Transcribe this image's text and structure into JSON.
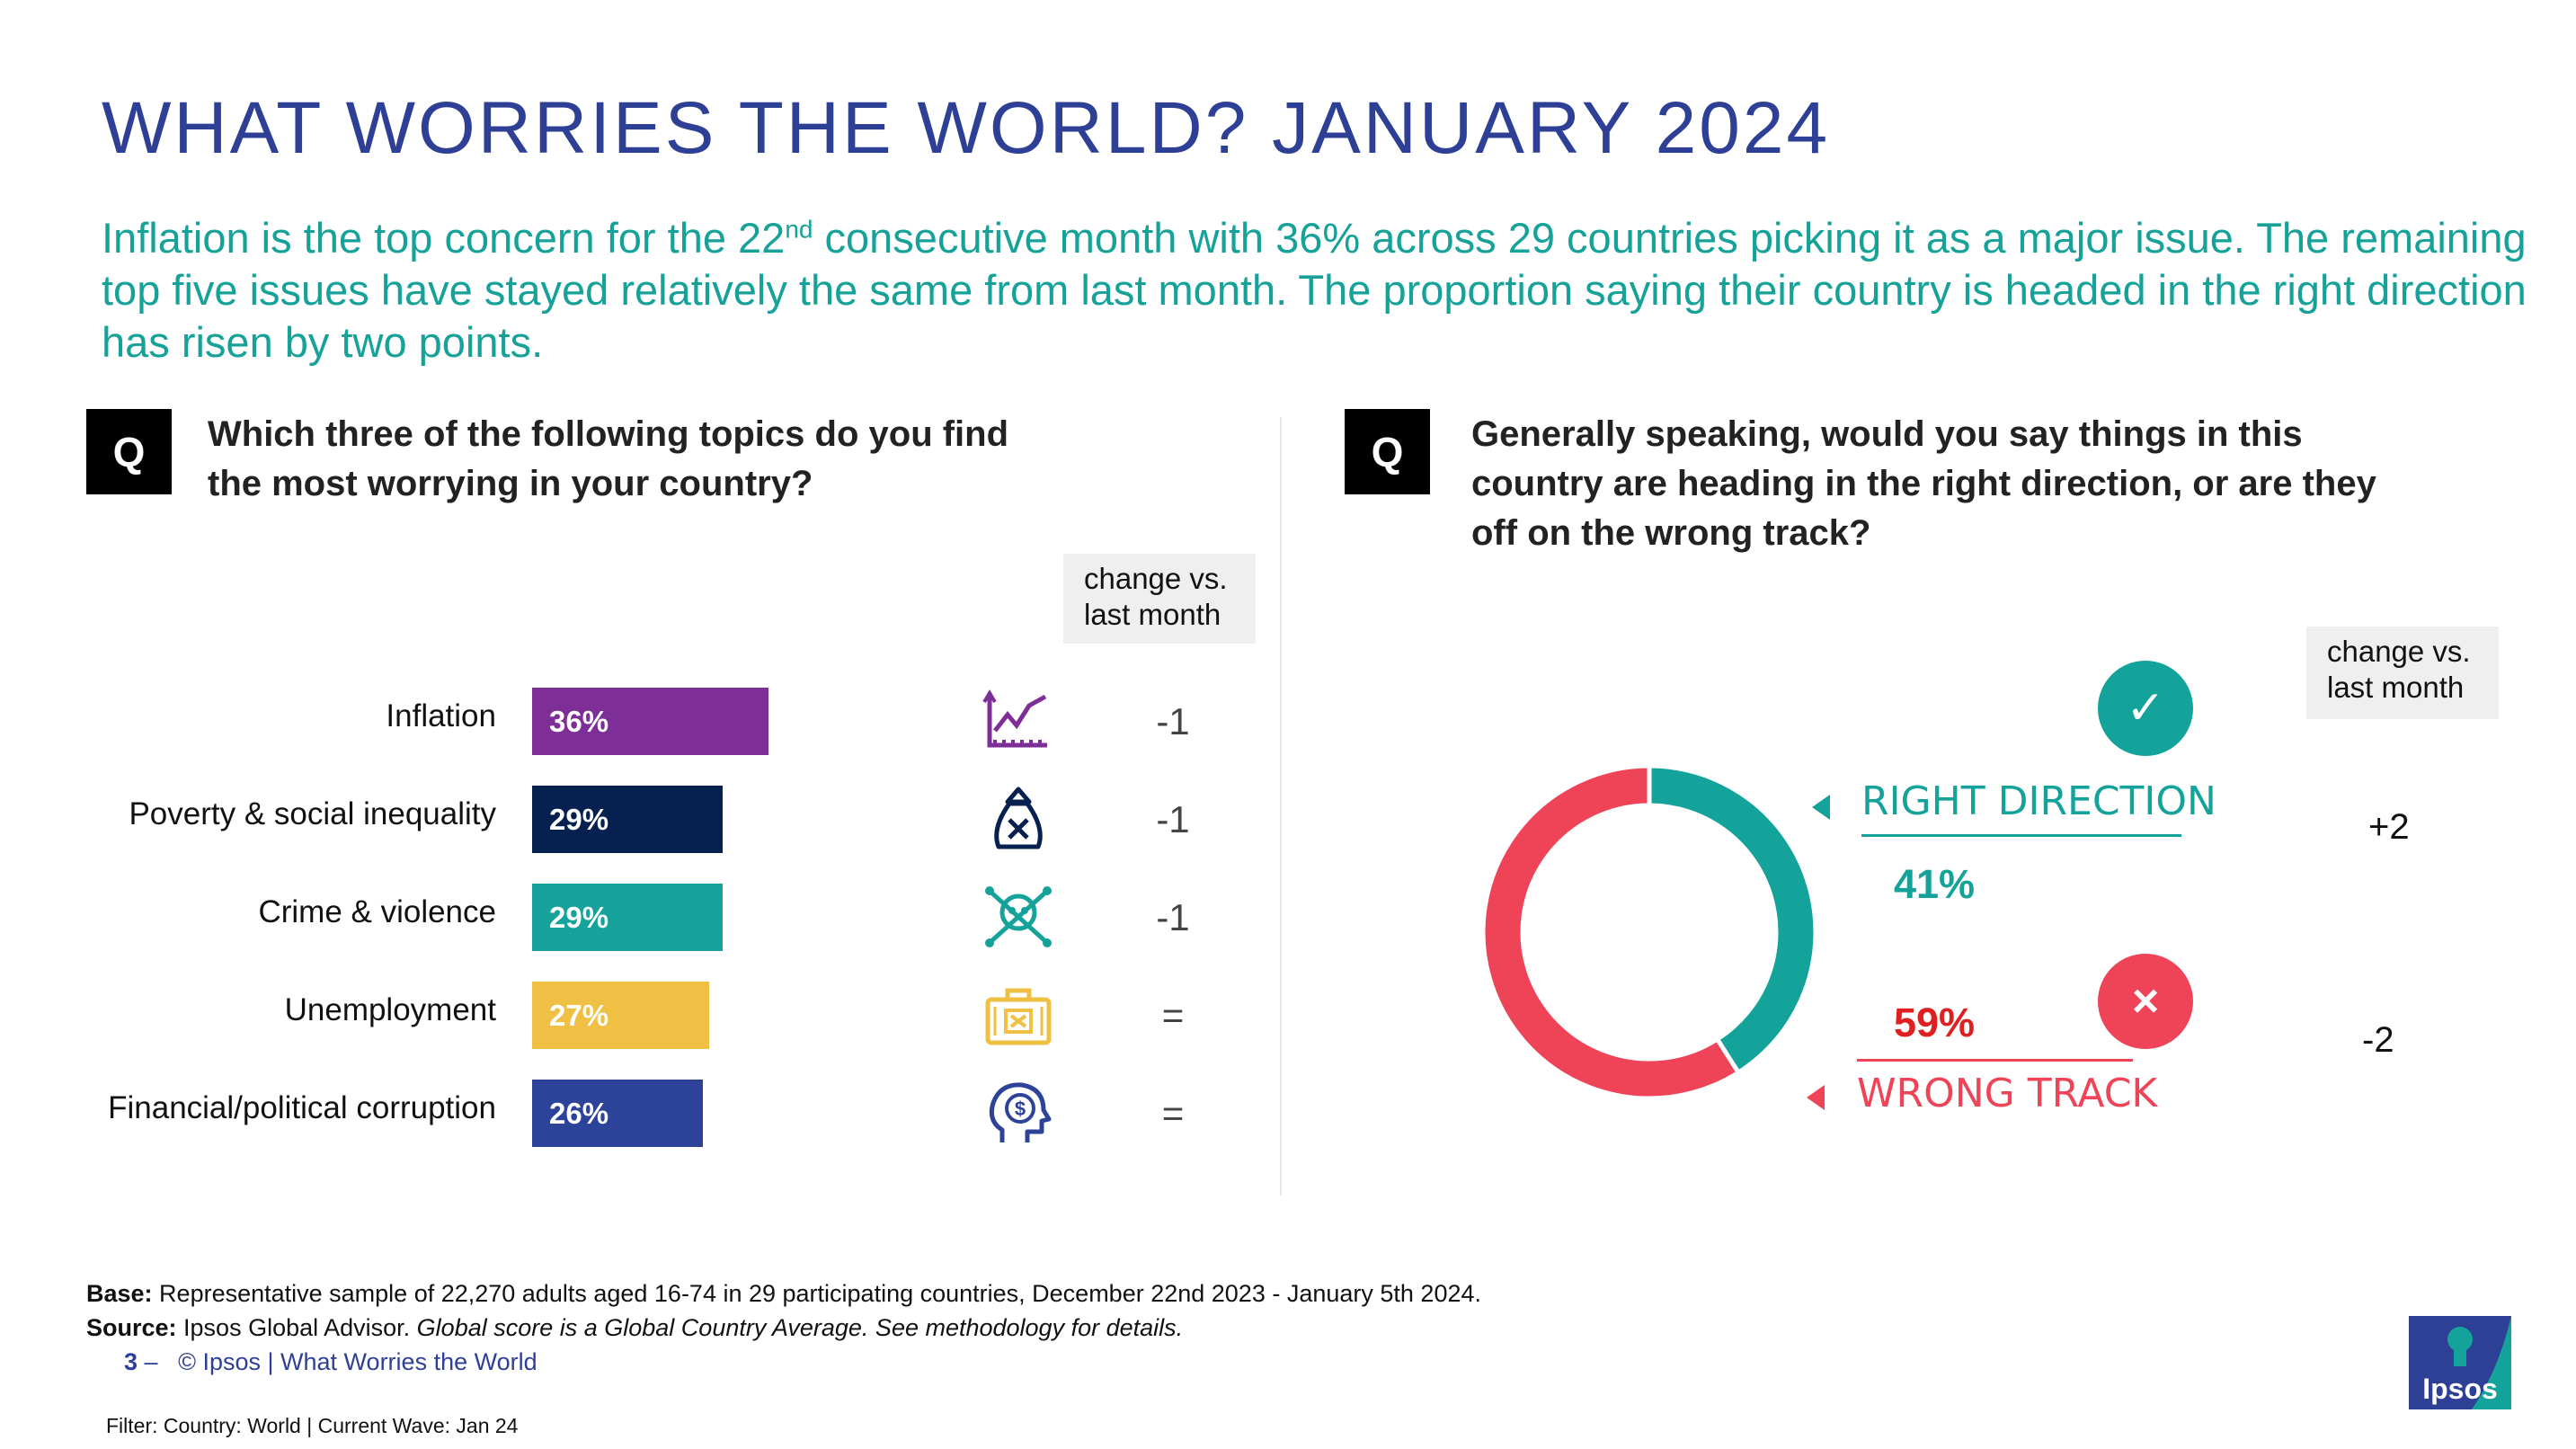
{
  "title": "WHAT WORRIES THE WORLD? JANUARY 2024",
  "subtitle": {
    "part1": "Inflation is the top concern for the 22",
    "sup": "nd",
    "part2": " consecutive month with 36% across 29 countries picking it as a major issue. The remaining top five issues have stayed relatively the same from last month. The proportion saying their country is headed in the right direction has risen by two points."
  },
  "left_panel": {
    "q_badge": "Q",
    "question": "Which three of the following topics do you find the most worrying in your country?",
    "change_header": "change vs. last month"
  },
  "right_panel": {
    "q_badge": "Q",
    "question": "Generally speaking, would you say things in this country are heading in the right direction, or are they off on the wrong track?",
    "change_header": "change vs. last month",
    "check_glyph": "✓",
    "cross_glyph": "×"
  },
  "chart_data": [
    {
      "type": "bar",
      "orientation": "horizontal",
      "categories": [
        "Inflation",
        "Poverty & social inequality",
        "Crime & violence",
        "Unemployment",
        "Financial/political corruption"
      ],
      "values": [
        36,
        29,
        29,
        27,
        26
      ],
      "value_labels": [
        "36%",
        "29%",
        "29%",
        "27%",
        "26%"
      ],
      "colors": [
        "#7e2f97",
        "#06214f",
        "#14a29b",
        "#f0c044",
        "#2d4399"
      ],
      "icons": [
        "chart-line-icon",
        "money-bag-icon",
        "skull-crossbones-icon",
        "briefcase-icon",
        "head-dollar-icon"
      ],
      "change_vs_last_month": [
        "-1",
        "-1",
        "-1",
        "=",
        "="
      ],
      "xlim": [
        0,
        100
      ]
    },
    {
      "type": "pie",
      "donut": true,
      "categories": [
        "RIGHT DIRECTION",
        "WRONG TRACK"
      ],
      "values": [
        41,
        59
      ],
      "value_labels": [
        "41%",
        "59%"
      ],
      "colors": [
        "#13a39b",
        "#ef4458"
      ],
      "change_vs_last_month": [
        "+2",
        "-2"
      ]
    }
  ],
  "footer": {
    "base_label": "Base:",
    "base_text": " Representative sample of 22,270 adults aged 16-74 in 29 participating countries, December 22nd 2023 - January 5th 2024.",
    "source_label": "Source:",
    "source_text": " Ipsos Global Advisor. ",
    "source_italic": "Global score is a Global Country Average. See methodology for details.",
    "page_number": "3",
    "dash": "–",
    "copyright": "© Ipsos | What Worries the World",
    "filter": "Filter: Country: World | Current Wave: Jan 24",
    "logo_text": "Ipsos"
  },
  "colors": {
    "title_blue": "#2e3f96",
    "subtitle_teal": "#16a299",
    "right_teal": "#13a39b",
    "wrong_red": "#ef4458"
  }
}
